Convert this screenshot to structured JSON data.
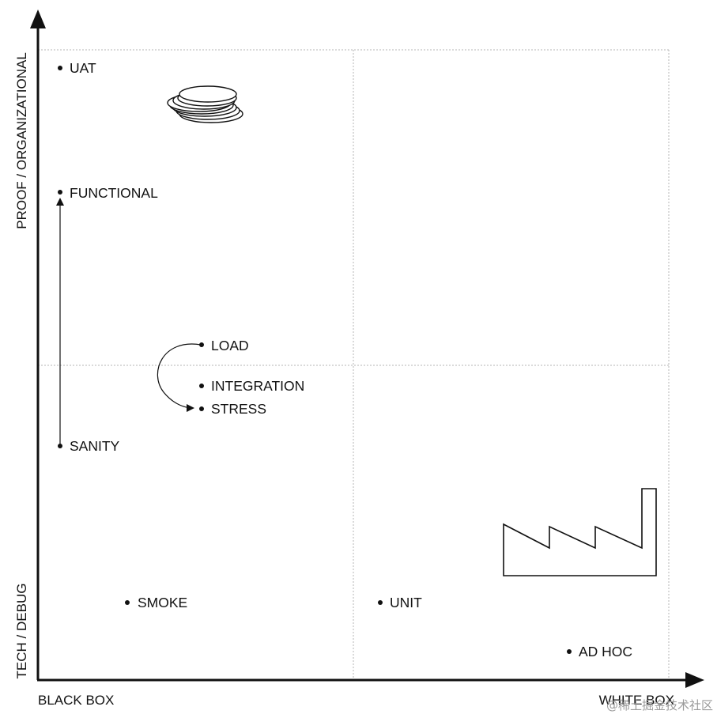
{
  "axes": {
    "x_left": "BLACK BOX",
    "x_right": "WHITE BOX",
    "y_top": "PROOF / ORGANIZATIONAL",
    "y_bottom": "TECH / DEBUG"
  },
  "points": [
    {
      "id": "uat",
      "label": "UAT"
    },
    {
      "id": "functional",
      "label": "FUNCTIONAL"
    },
    {
      "id": "load",
      "label": "LOAD"
    },
    {
      "id": "integration",
      "label": "INTEGRATION"
    },
    {
      "id": "stress",
      "label": "STRESS"
    },
    {
      "id": "sanity",
      "label": "SANITY"
    },
    {
      "id": "smoke",
      "label": "SMOKE"
    },
    {
      "id": "unit",
      "label": "UNIT"
    },
    {
      "id": "adhoc",
      "label": "AD HOC"
    }
  ],
  "icons": {
    "coins": "coin-stack-icon",
    "factory": "factory-icon"
  },
  "watermark": "@稀土掘金技术社区",
  "colors": {
    "ink": "#111111",
    "grid": "#b5b5b5"
  }
}
